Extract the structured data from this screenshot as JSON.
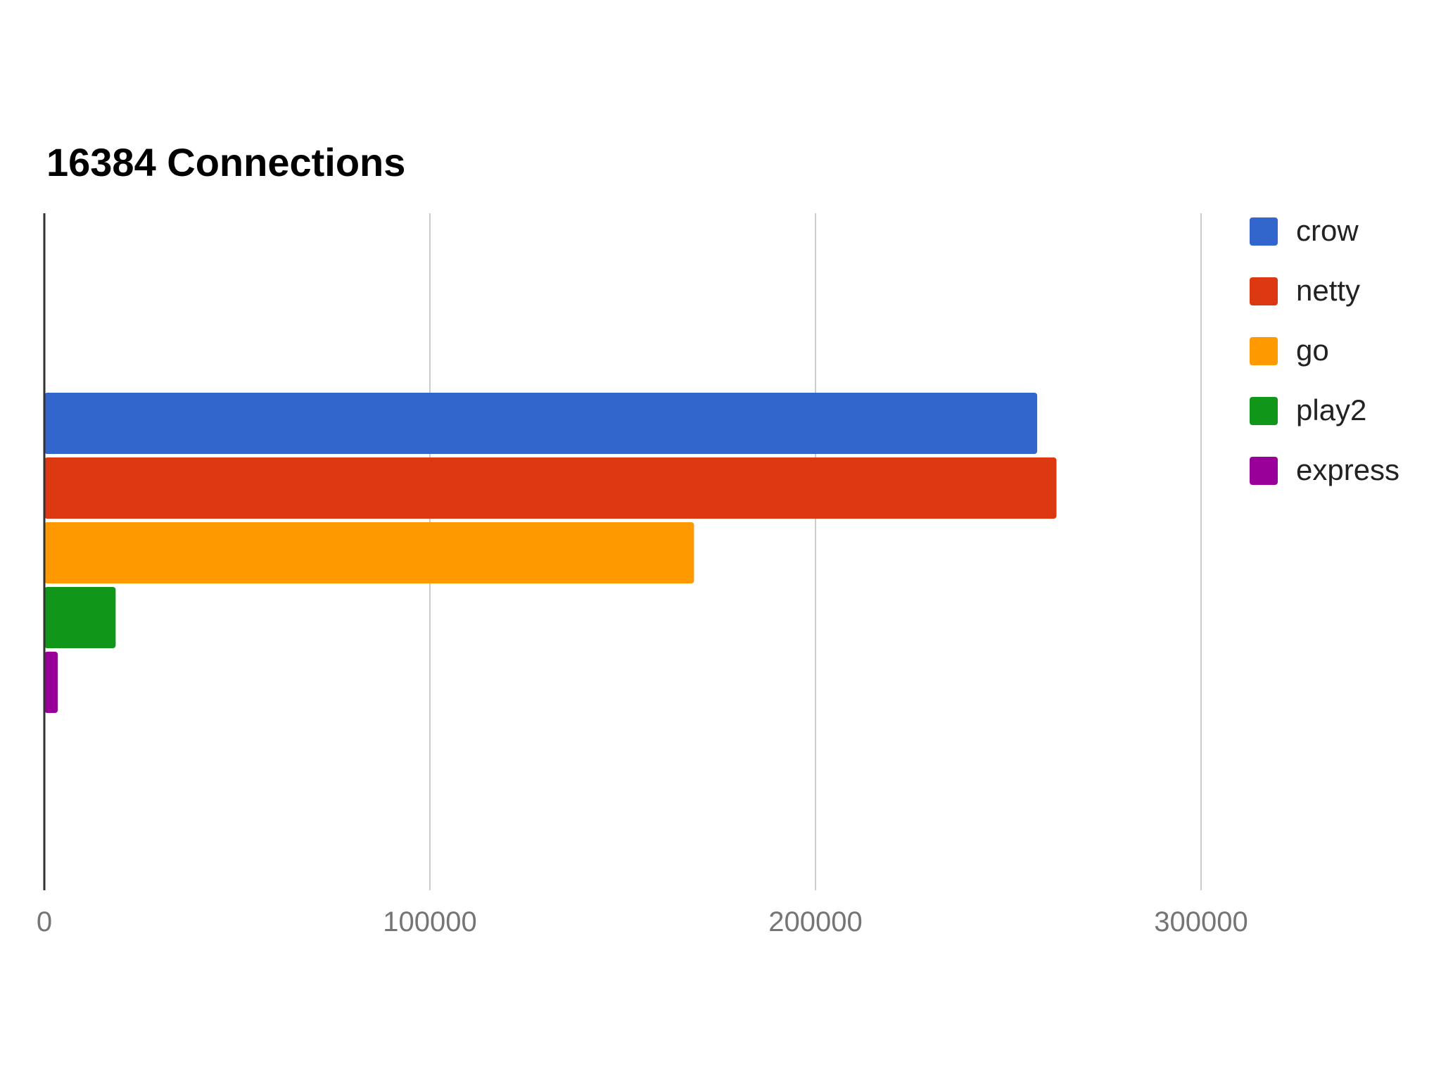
{
  "chart_data": {
    "type": "bar",
    "orientation": "horizontal",
    "title": "16384 Connections",
    "xlabel": "",
    "ylabel": "",
    "categories": [
      ""
    ],
    "series": [
      {
        "name": "crow",
        "values": [
          257500
        ],
        "color": "#3366cc"
      },
      {
        "name": "netty",
        "values": [
          262500
        ],
        "color": "#dc3912"
      },
      {
        "name": "go",
        "values": [
          168500
        ],
        "color": "#ff9900"
      },
      {
        "name": "play2",
        "values": [
          18500
        ],
        "color": "#109618"
      },
      {
        "name": "express",
        "values": [
          3500
        ],
        "color": "#990099"
      }
    ],
    "xlim": [
      0,
      300000
    ],
    "xticks": [
      0,
      100000,
      200000,
      300000
    ],
    "xtick_labels": [
      "0",
      "100000",
      "200000",
      "300000"
    ],
    "grid": true,
    "legend_position": "right"
  }
}
